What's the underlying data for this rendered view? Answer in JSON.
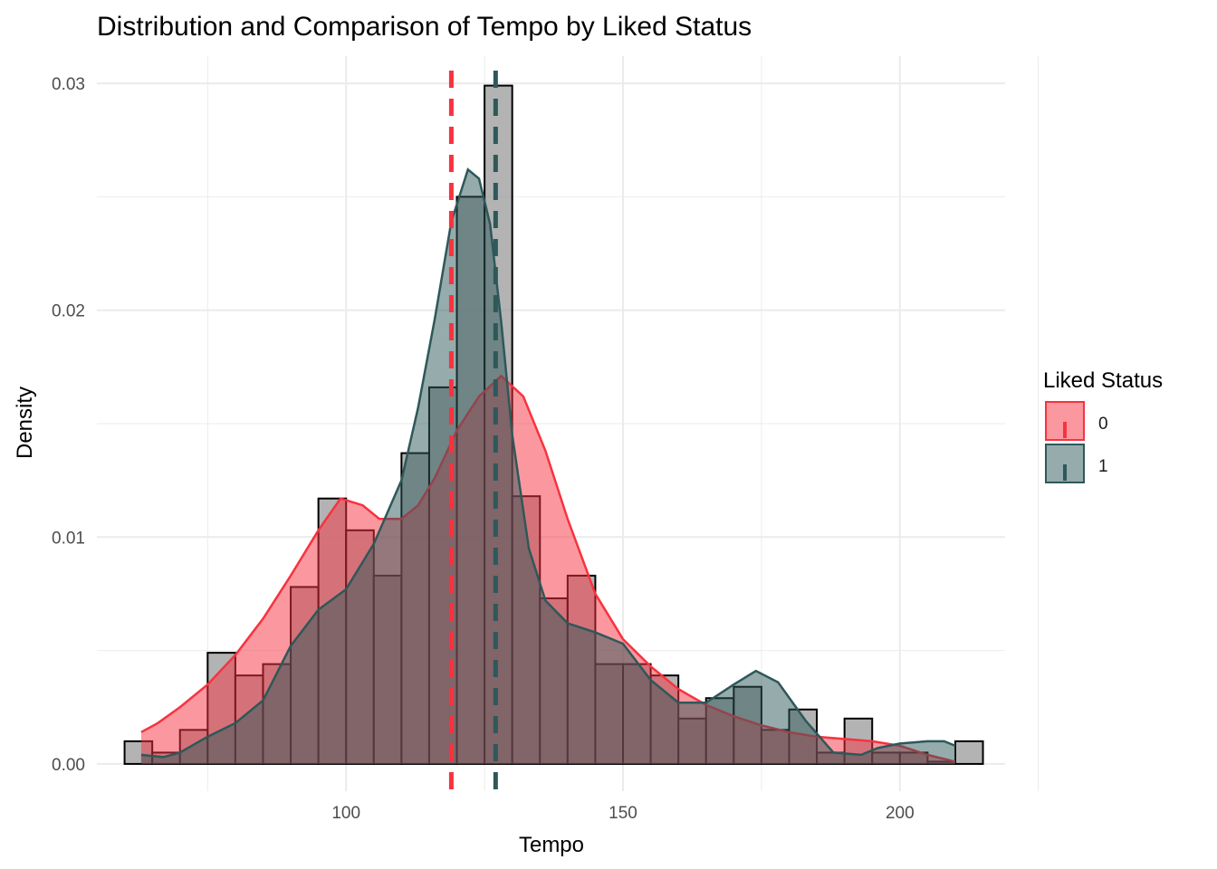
{
  "chart_data": {
    "type": "histogram",
    "title": "Distribution and Comparison of Tempo by Liked Status",
    "xlabel": "Tempo",
    "ylabel": "Density",
    "xlim": [
      55,
      219
    ],
    "ylim": [
      -0.0012,
      0.0312
    ],
    "x_ticks": [
      100,
      150,
      200
    ],
    "y_ticks": [
      0.0,
      0.01,
      0.02,
      0.03
    ],
    "x_tick_labels": [
      "100",
      "150",
      "200"
    ],
    "y_tick_labels": [
      "0.00",
      "0.01",
      "0.02",
      "0.03"
    ],
    "grid": true,
    "legend": {
      "title": "Liked Status",
      "placement": "right",
      "entries": [
        "0",
        "1"
      ]
    },
    "colors": {
      "liked_0": "#f8323f",
      "liked_1": "#2e5859",
      "overall_hist": "#999999"
    },
    "histogram": {
      "bin_width": 5,
      "bins": [
        {
          "x0": 60,
          "x1": 65,
          "y": 0.001
        },
        {
          "x0": 65,
          "x1": 70,
          "y": 0.0005
        },
        {
          "x0": 70,
          "x1": 75,
          "y": 0.0015
        },
        {
          "x0": 75,
          "x1": 80,
          "y": 0.0049
        },
        {
          "x0": 80,
          "x1": 85,
          "y": 0.0039
        },
        {
          "x0": 85,
          "x1": 90,
          "y": 0.0044
        },
        {
          "x0": 90,
          "x1": 95,
          "y": 0.0078
        },
        {
          "x0": 95,
          "x1": 100,
          "y": 0.0117
        },
        {
          "x0": 100,
          "x1": 105,
          "y": 0.0103
        },
        {
          "x0": 105,
          "x1": 110,
          "y": 0.0083
        },
        {
          "x0": 110,
          "x1": 115,
          "y": 0.0137
        },
        {
          "x0": 115,
          "x1": 120,
          "y": 0.0166
        },
        {
          "x0": 120,
          "x1": 125,
          "y": 0.025
        },
        {
          "x0": 125,
          "x1": 130,
          "y": 0.0299
        },
        {
          "x0": 130,
          "x1": 135,
          "y": 0.0118
        },
        {
          "x0": 135,
          "x1": 140,
          "y": 0.0073
        },
        {
          "x0": 140,
          "x1": 145,
          "y": 0.0083
        },
        {
          "x0": 145,
          "x1": 150,
          "y": 0.0044
        },
        {
          "x0": 150,
          "x1": 155,
          "y": 0.0044
        },
        {
          "x0": 155,
          "x1": 160,
          "y": 0.0039
        },
        {
          "x0": 160,
          "x1": 165,
          "y": 0.002
        },
        {
          "x0": 165,
          "x1": 170,
          "y": 0.0029
        },
        {
          "x0": 170,
          "x1": 175,
          "y": 0.0034
        },
        {
          "x0": 175,
          "x1": 180,
          "y": 0.0015
        },
        {
          "x0": 180,
          "x1": 185,
          "y": 0.0024
        },
        {
          "x0": 185,
          "x1": 190,
          "y": 0.0005
        },
        {
          "x0": 190,
          "x1": 195,
          "y": 0.002
        },
        {
          "x0": 195,
          "x1": 200,
          "y": 0.0005
        },
        {
          "x0": 200,
          "x1": 205,
          "y": 0.0005
        },
        {
          "x0": 205,
          "x1": 210,
          "y": 0.0001
        },
        {
          "x0": 210,
          "x1": 215,
          "y": 0.001
        }
      ]
    },
    "density_series": [
      {
        "name": "0",
        "mean": 119,
        "x": [
          63,
          66,
          70,
          75,
          80,
          85,
          90,
          95,
          99,
          103,
          106,
          110,
          113,
          116,
          120,
          124,
          128,
          132,
          136,
          140,
          145,
          150,
          155,
          160,
          165,
          170,
          175,
          180,
          185,
          190,
          195,
          200,
          205,
          210
        ],
        "y": [
          0.0014,
          0.0018,
          0.0025,
          0.0035,
          0.0048,
          0.0064,
          0.0083,
          0.0103,
          0.0117,
          0.0114,
          0.0108,
          0.0108,
          0.0114,
          0.0126,
          0.0147,
          0.0162,
          0.0171,
          0.0162,
          0.0138,
          0.0108,
          0.0075,
          0.0055,
          0.0043,
          0.0033,
          0.0026,
          0.0021,
          0.0017,
          0.0014,
          0.0012,
          0.0011,
          0.001,
          0.0008,
          0.0004,
          0.0001
        ]
      },
      {
        "name": "1",
        "mean": 127,
        "x": [
          63,
          67,
          70,
          75,
          80,
          85,
          90,
          95,
          100,
          105,
          110,
          113,
          116,
          119,
          122,
          124,
          126,
          128,
          130,
          133,
          136,
          140,
          145,
          150,
          155,
          160,
          165,
          170,
          174,
          178,
          183,
          188,
          193,
          196,
          200,
          205,
          208,
          210
        ],
        "y": [
          0.0004,
          0.0003,
          0.0005,
          0.0012,
          0.0018,
          0.0028,
          0.0052,
          0.0068,
          0.0077,
          0.0097,
          0.0125,
          0.0157,
          0.0196,
          0.0239,
          0.0262,
          0.0258,
          0.0238,
          0.0195,
          0.0145,
          0.0095,
          0.0072,
          0.0062,
          0.0058,
          0.0053,
          0.0037,
          0.0027,
          0.0027,
          0.0035,
          0.0041,
          0.0036,
          0.0019,
          0.0005,
          0.0004,
          0.0007,
          0.0009,
          0.001,
          0.001,
          0.0008
        ]
      }
    ]
  }
}
